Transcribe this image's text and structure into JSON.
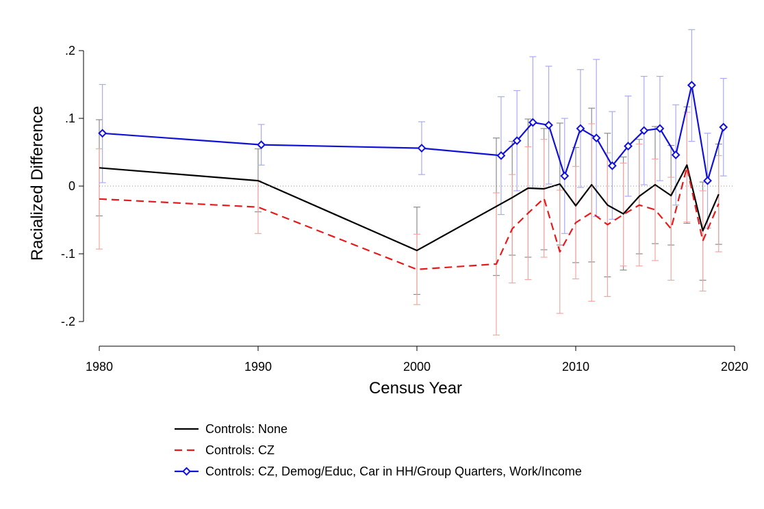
{
  "chart_data": {
    "type": "line",
    "title": "",
    "xlabel": "Census Year",
    "ylabel": "Racialized Difference",
    "xlim": [
      1980,
      2020
    ],
    "ylim": [
      -0.235,
      0.2
    ],
    "xticks": [
      1980,
      1990,
      2000,
      2010,
      2020
    ],
    "xtick_labels": [
      "1980",
      "1990",
      "2000",
      "2010",
      "2020"
    ],
    "yticks": [
      0.2,
      0.1,
      0,
      -0.1,
      -0.2
    ],
    "ytick_labels": [
      ".2",
      ".1",
      "0",
      "-.1",
      "-.2"
    ],
    "reference_line": {
      "y": 0,
      "style": "dotted"
    },
    "legend_position": "bottom",
    "series": [
      {
        "name": "Controls: None",
        "color": "#000000",
        "ci_color": "#8c8c8c",
        "dash": "solid",
        "marker": "none",
        "x": [
          1980,
          1990,
          2000,
          2005,
          2006,
          2007,
          2008,
          2009,
          2010,
          2011,
          2012,
          2013,
          2014,
          2015,
          2016,
          2017,
          2018,
          2019
        ],
        "y": [
          0.027,
          0.008,
          -0.095,
          -0.03,
          -0.017,
          -0.003,
          -0.004,
          0.003,
          -0.029,
          0.002,
          -0.028,
          -0.041,
          -0.015,
          0.002,
          -0.014,
          0.031,
          -0.066,
          -0.012
        ],
        "lo": [
          -0.044,
          -0.038,
          -0.16,
          -0.132,
          -0.102,
          -0.105,
          -0.094,
          -0.087,
          -0.113,
          -0.112,
          -0.134,
          -0.124,
          -0.1,
          -0.085,
          -0.087,
          -0.055,
          -0.139,
          -0.086
        ],
        "hi": [
          0.098,
          0.055,
          -0.031,
          0.071,
          0.066,
          0.099,
          0.085,
          0.093,
          0.057,
          0.115,
          0.078,
          0.043,
          0.069,
          0.088,
          0.06,
          0.117,
          0.006,
          0.062
        ]
      },
      {
        "name": "Controls: CZ",
        "color": "#e8191b",
        "ci_color": "#f4a6a0",
        "dash": "dashed",
        "marker": "none",
        "x": [
          1980,
          1990,
          2000,
          2005,
          2006,
          2007,
          2008,
          2009,
          2010,
          2011,
          2012,
          2013,
          2014,
          2015,
          2016,
          2017,
          2018,
          2019
        ],
        "y": [
          -0.019,
          -0.031,
          -0.123,
          -0.115,
          -0.063,
          -0.04,
          -0.018,
          -0.097,
          -0.054,
          -0.039,
          -0.057,
          -0.042,
          -0.028,
          -0.035,
          -0.063,
          0.028,
          -0.081,
          -0.026
        ],
        "lo": [
          -0.093,
          -0.07,
          -0.175,
          -0.22,
          -0.143,
          -0.138,
          -0.105,
          -0.188,
          -0.137,
          -0.17,
          -0.163,
          -0.118,
          -0.118,
          -0.11,
          -0.139,
          -0.053,
          -0.155,
          -0.097
        ],
        "hi": [
          0.055,
          0.008,
          -0.071,
          -0.01,
          0.017,
          0.058,
          0.069,
          -0.006,
          0.029,
          0.092,
          0.049,
          0.034,
          0.062,
          0.04,
          0.013,
          0.109,
          -0.007,
          0.045
        ]
      },
      {
        "name": "Controls: CZ, Demog/Educ, Car in HH/Group Quarters, Work/Income",
        "color": "#1010d8",
        "ci_color": "#a9a9f4",
        "dash": "solid",
        "marker": "diamond",
        "x": [
          1980.2,
          1990.2,
          2000.3,
          2005.3,
          2006.3,
          2007.3,
          2008.3,
          2009.3,
          2010.3,
          2011.3,
          2012.3,
          2013.3,
          2014.3,
          2015.3,
          2016.3,
          2017.3,
          2018.3,
          2019.3
        ],
        "y": [
          0.078,
          0.061,
          0.056,
          0.045,
          0.067,
          0.094,
          0.09,
          0.015,
          0.085,
          0.071,
          0.03,
          0.059,
          0.082,
          0.085,
          0.046,
          0.149,
          0.008,
          0.087
        ],
        "lo": [
          0.005,
          0.031,
          0.017,
          -0.042,
          -0.007,
          -0.003,
          0.003,
          -0.07,
          -0.002,
          -0.045,
          -0.049,
          -0.015,
          0.002,
          0.008,
          -0.028,
          0.066,
          -0.062,
          0.015
        ],
        "hi": [
          0.15,
          0.091,
          0.095,
          0.132,
          0.141,
          0.191,
          0.177,
          0.1,
          0.172,
          0.187,
          0.11,
          0.133,
          0.162,
          0.162,
          0.12,
          0.231,
          0.078,
          0.159
        ]
      }
    ]
  }
}
